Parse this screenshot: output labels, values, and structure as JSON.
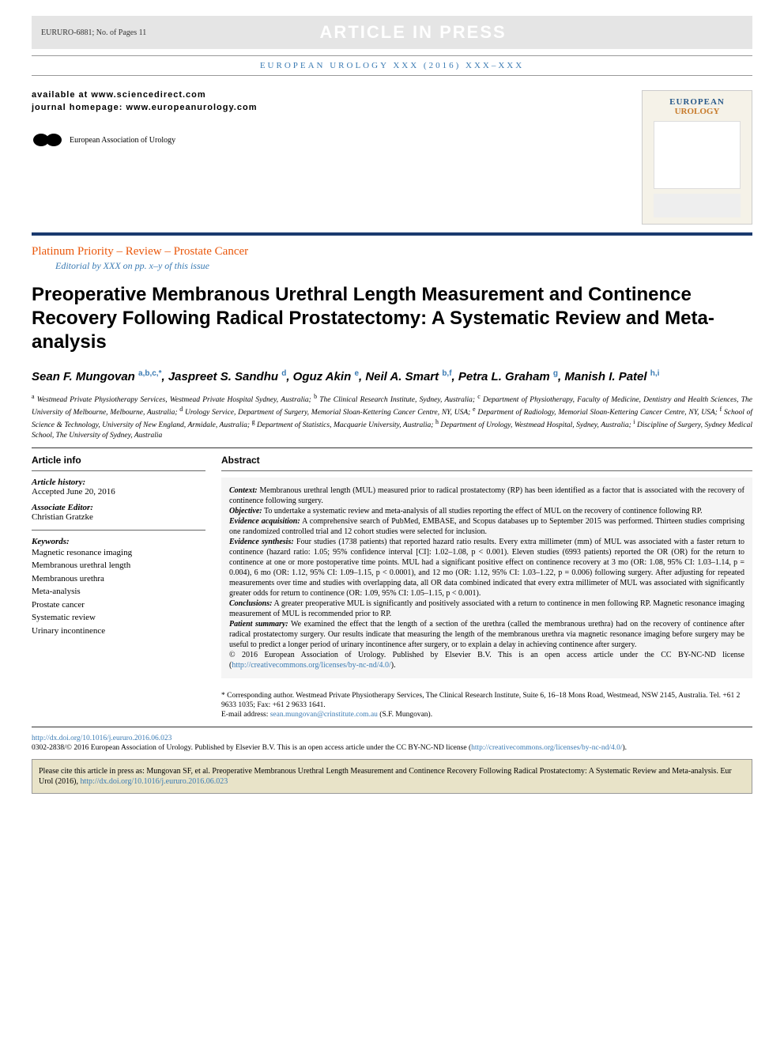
{
  "header": {
    "manuscript": "EURURO-6881; No. of Pages 11",
    "aip": "ARTICLE IN PRESS",
    "journal_line": "EUROPEAN UROLOGY XXX (2016) XXX–XXX",
    "available": "available at www.sciencedirect.com",
    "homepage": "journal homepage: www.europeanurology.com",
    "eau_label": "European Association of Urology",
    "cover": {
      "title": "EUROPEAN",
      "subtitle": "UROLOGY"
    }
  },
  "section": {
    "type": "Platinum Priority – Review – Prostate Cancer",
    "editorial": "Editorial by XXX on pp. x–y of this issue"
  },
  "title": "Preoperative Membranous Urethral Length Measurement and Continence Recovery Following Radical Prostatectomy: A Systematic Review and Meta-analysis",
  "authors_html": "Sean F. Mungovan <sup>a,b,c,*</sup>, Jaspreet S. Sandhu <sup>d</sup>, Oguz Akin <sup>e</sup>, Neil A. Smart <sup>b,f</sup>, Petra L. Graham <sup>g</sup>, Manish I. Patel <sup>h,i</sup>",
  "affiliations": "<sup>a</sup> Westmead Private Physiotherapy Services, Westmead Private Hospital Sydney, Australia; <sup>b</sup> The Clinical Research Institute, Sydney, Australia; <sup>c</sup> Department of Physiotherapy, Faculty of Medicine, Dentistry and Health Sciences, The University of Melbourne, Melbourne, Australia; <sup>d</sup> Urology Service, Department of Surgery, Memorial Sloan-Kettering Cancer Centre, NY, USA; <sup>e</sup> Department of Radiology, Memorial Sloan-Kettering Cancer Centre, NY, USA; <sup>f</sup> School of Science & Technology, University of New England, Armidale, Australia; <sup>g</sup> Department of Statistics, Macquarie University, Australia; <sup>h</sup> Department of Urology, Westmead Hospital, Sydney, Australia; <sup>i</sup> Discipline of Surgery, Sydney Medical School, The University of Sydney, Australia",
  "article_info": {
    "heading": "Article info",
    "history_label": "Article history:",
    "history": "Accepted June 20, 2016",
    "editor_label": "Associate Editor:",
    "editor": "Christian Gratzke",
    "keywords_label": "Keywords:",
    "keywords": [
      "Magnetic resonance imaging",
      "Membranous urethral length",
      "Membranous urethra",
      "Meta-analysis",
      "Prostate cancer",
      "Systematic review",
      "Urinary incontinence"
    ]
  },
  "abstract": {
    "heading": "Abstract",
    "sections": [
      {
        "label": "Context:",
        "text": "Membranous urethral length (MUL) measured prior to radical prostatectomy (RP) has been identified as a factor that is associated with the recovery of continence following surgery."
      },
      {
        "label": "Objective:",
        "text": "To undertake a systematic review and meta-analysis of all studies reporting the effect of MUL on the recovery of continence following RP."
      },
      {
        "label": "Evidence acquisition:",
        "text": "A comprehensive search of PubMed, EMBASE, and Scopus databases up to September 2015 was performed. Thirteen studies comprising one randomized controlled trial and 12 cohort studies were selected for inclusion."
      },
      {
        "label": "Evidence synthesis:",
        "text": "Four studies (1738 patients) that reported hazard ratio results. Every extra millimeter (mm) of MUL was associated with a faster return to continence (hazard ratio: 1.05; 95% confidence interval [CI]: 1.02–1.08, p < 0.001). Eleven studies (6993 patients) reported the OR (OR) for the return to continence at one or more postoperative time points. MUL had a significant positive effect on continence recovery at 3 mo (OR: 1.08, 95% CI: 1.03–1.14, p = 0.004), 6 mo (OR: 1.12, 95% CI: 1.09–1.15, p < 0.0001), and 12 mo (OR: 1.12, 95% CI: 1.03–1.22, p = 0.006) following surgery. After adjusting for repeated measurements over time and studies with overlapping data, all OR data combined indicated that every extra millimeter of MUL was associated with significantly greater odds for return to continence (OR: 1.09, 95% CI: 1.05–1.15, p < 0.001)."
      },
      {
        "label": "Conclusions:",
        "text": "A greater preoperative MUL is significantly and positively associated with a return to continence in men following RP. Magnetic resonance imaging measurement of MUL is recommended prior to RP."
      },
      {
        "label": "Patient summary:",
        "text": "We examined the effect that the length of a section of the urethra (called the membranous urethra) had on the recovery of continence after radical prostatectomy surgery. Our results indicate that measuring the length of the membranous urethra via magnetic resonance imaging before surgery may be useful to predict a longer period of urinary incontinence after surgery, or to explain a delay in achieving continence after surgery."
      }
    ],
    "copyright": "© 2016 European Association of Urology. Published by Elsevier B.V. This is an open access article under the CC BY-NC-ND license (",
    "cc_link": "http://creativecommons.org/licenses/by-nc-nd/4.0/",
    "cc_close": ")."
  },
  "corresponding": {
    "text": "* Corresponding author. Westmead Private Physiotherapy Services, The Clinical Research Institute, Suite 6, 16–18 Mons Road, Westmead, NSW 2145, Australia. Tel. +61 2 9633 1035; Fax: +61 2 9633 1641.",
    "email_label": "E-mail address: ",
    "email": "sean.mungovan@crinstitute.com.au",
    "email_suffix": " (S.F. Mungovan)."
  },
  "footer": {
    "doi_link": "http://dx.doi.org/10.1016/j.eururo.2016.06.023",
    "issn": "0302-2838/© 2016 European Association of Urology. Published by Elsevier B.V. This is an open access article under the CC BY-NC-ND license (",
    "cc_link": "http://creativecommons.org/licenses/by-nc-nd/4.0/",
    "cc_close": ")."
  },
  "citebox": {
    "text": "Please cite this article in press as: Mungovan SF, et al. Preoperative Membranous Urethral Length Measurement and Continence Recovery Following Radical Prostatectomy: A Systematic Review and Meta-analysis. Eur Urol (2016), ",
    "link": "http://dx.doi.org/10.1016/j.eururo.2016.06.023"
  },
  "colors": {
    "orange": "#ea580c",
    "blue": "#3b7bb3",
    "darkblue": "#1a3a6e",
    "graybar": "#e5e5e5",
    "abs_bg": "#f5f5f5",
    "citebox": "#e8e3c8"
  }
}
